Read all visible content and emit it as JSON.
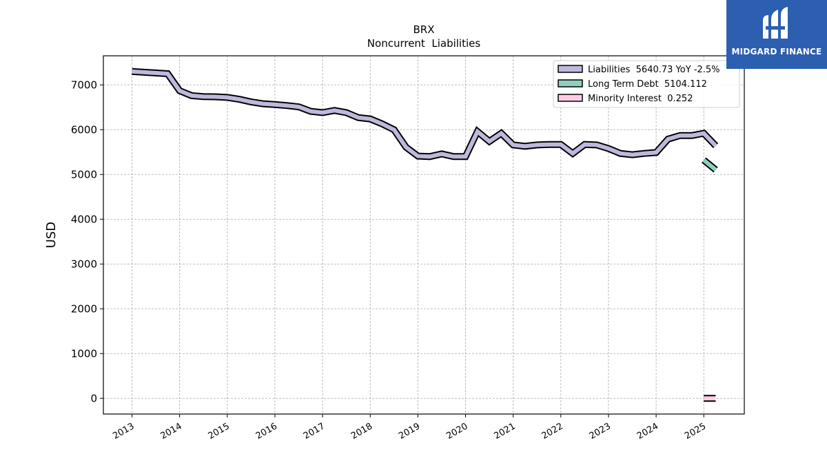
{
  "brand": {
    "name": "MIDGARD FINANCE"
  },
  "chart_data": {
    "type": "line",
    "title": "BRX",
    "subtitle": "Noncurrent  Liabilities",
    "xlabel": "",
    "ylabel": "USD",
    "ylim": [
      -350,
      7650
    ],
    "xlim": [
      2012.4,
      2025.85
    ],
    "yticks": [
      0,
      1000,
      2000,
      3000,
      4000,
      5000,
      6000,
      7000
    ],
    "xticks": [
      2013,
      2014,
      2015,
      2016,
      2017,
      2018,
      2019,
      2020,
      2021,
      2022,
      2023,
      2024,
      2025
    ],
    "xtick_labels": [
      "2013",
      "2014",
      "2015",
      "2016",
      "2017",
      "2018",
      "2019",
      "2020",
      "2021",
      "2022",
      "2023",
      "2024",
      "2025"
    ],
    "grid": true,
    "legend_position": "top-right",
    "legend": [
      "Liabilities  5640.73 YoY -2.5%",
      "Long Term Debt  5104.112",
      "Minority Interest  0.252"
    ],
    "colors": {
      "liabilities": "#bcb9dc",
      "long_term_debt": "#8ecfc0",
      "minority_interest": "#fccde5",
      "outline": "#000000",
      "grid": "#aaaaaa"
    },
    "series": [
      {
        "name": "Liabilities",
        "x": [
          2013.0,
          2013.75,
          2014.0,
          2014.25,
          2014.5,
          2014.75,
          2015.0,
          2015.25,
          2015.5,
          2015.75,
          2016.0,
          2016.25,
          2016.5,
          2016.75,
          2017.0,
          2017.25,
          2017.5,
          2017.75,
          2018.0,
          2018.25,
          2018.5,
          2018.75,
          2019.0,
          2019.25,
          2019.5,
          2019.75,
          2020.0,
          2020.25,
          2020.5,
          2020.75,
          2021.0,
          2021.25,
          2021.5,
          2021.75,
          2022.0,
          2022.25,
          2022.5,
          2022.75,
          2023.0,
          2023.25,
          2023.5,
          2023.75,
          2024.0,
          2024.25,
          2024.5,
          2024.75,
          2025.0,
          2025.25
        ],
        "values": [
          7300,
          7250,
          6870,
          6760,
          6740,
          6735,
          6720,
          6680,
          6620,
          6580,
          6560,
          6540,
          6510,
          6410,
          6380,
          6430,
          6380,
          6270,
          6240,
          6130,
          6000,
          5610,
          5410,
          5400,
          5460,
          5400,
          5400,
          5960,
          5740,
          5920,
          5660,
          5630,
          5660,
          5670,
          5670,
          5470,
          5670,
          5660,
          5580,
          5470,
          5440,
          5470,
          5490,
          5790,
          5870,
          5870,
          5920,
          5640
        ]
      },
      {
        "name": "Long Term Debt",
        "x": [
          2025.0,
          2025.25
        ],
        "values": [
          5320,
          5104.112
        ]
      },
      {
        "name": "Minority Interest",
        "x": [
          2025.0,
          2025.25
        ],
        "values": [
          0.252,
          0.252
        ]
      }
    ]
  }
}
